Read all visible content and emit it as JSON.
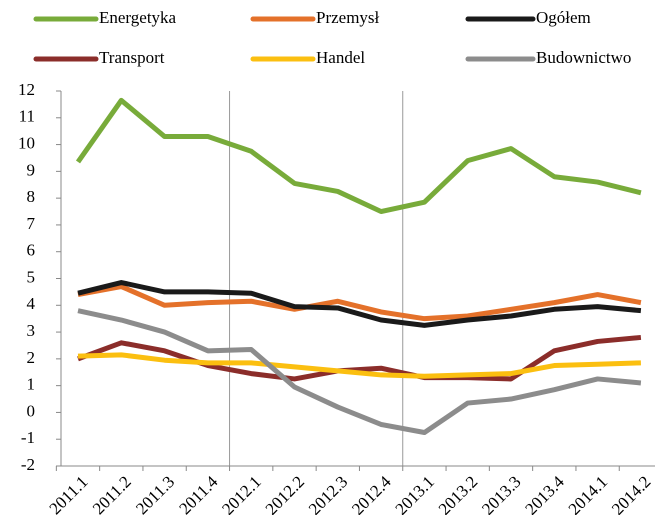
{
  "chart_data": {
    "type": "line",
    "categories": [
      "2011.1",
      "2011.2",
      "2011.3",
      "2011.4",
      "2012.1",
      "2012.2",
      "2012.3",
      "2012.4",
      "2013.1",
      "2013.2",
      "2013.3",
      "2013.4",
      "2014.1",
      "2014.2"
    ],
    "series": [
      {
        "name": "Energetyka",
        "color": "#78ab3a",
        "values": [
          9.35,
          11.65,
          10.3,
          10.3,
          9.75,
          8.55,
          8.25,
          7.5,
          7.85,
          9.4,
          9.85,
          8.8,
          8.6,
          8.2
        ]
      },
      {
        "name": "Przemysł",
        "color": "#e4712a",
        "values": [
          4.4,
          4.7,
          4.0,
          4.1,
          4.15,
          3.85,
          4.15,
          3.75,
          3.5,
          3.6,
          3.85,
          4.1,
          4.4,
          4.1
        ]
      },
      {
        "name": "Ogółem",
        "color": "#1a1a1a",
        "values": [
          4.45,
          4.85,
          4.5,
          4.5,
          4.45,
          3.95,
          3.9,
          3.45,
          3.25,
          3.45,
          3.6,
          3.85,
          3.95,
          3.8
        ]
      },
      {
        "name": "Transport",
        "color": "#8b2d2a",
        "values": [
          2.0,
          2.6,
          2.3,
          1.75,
          1.45,
          1.25,
          1.55,
          1.65,
          1.3,
          1.3,
          1.25,
          2.3,
          2.65,
          2.8
        ]
      },
      {
        "name": "Handel",
        "color": "#fbbf10",
        "values": [
          2.1,
          2.15,
          1.95,
          1.85,
          1.85,
          1.7,
          1.55,
          1.4,
          1.35,
          1.4,
          1.45,
          1.75,
          1.8,
          1.85
        ]
      },
      {
        "name": "Budownictwo",
        "color": "#8c8c8c",
        "values": [
          3.8,
          3.45,
          3.0,
          2.3,
          2.35,
          0.95,
          0.2,
          -0.45,
          -0.75,
          0.35,
          0.5,
          0.85,
          1.25,
          1.1
        ]
      }
    ],
    "ylim": [
      -2,
      12
    ],
    "yticks": [
      -2,
      -1,
      0,
      1,
      2,
      3,
      4,
      5,
      6,
      7,
      8,
      9,
      10,
      11,
      12
    ],
    "negative_tick_color": "#ff0000",
    "grid": false,
    "legend": "top"
  }
}
